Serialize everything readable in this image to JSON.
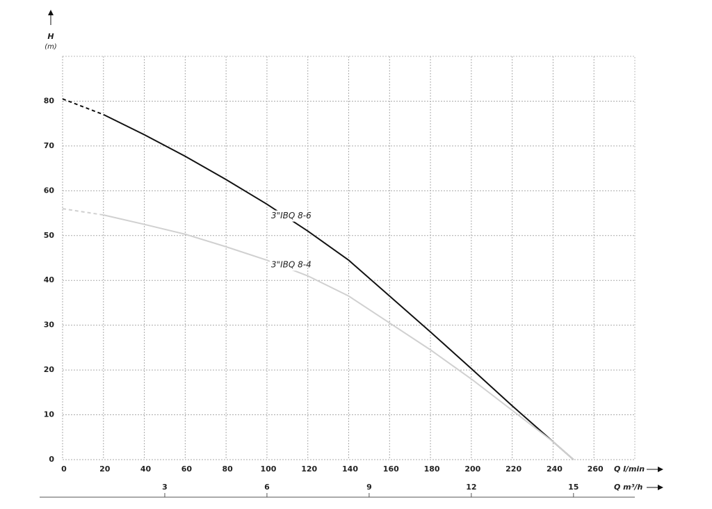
{
  "chart_data": {
    "type": "line",
    "y_label": "H",
    "y_unit": "(m)",
    "x_label": "Q l/min",
    "x2_label": "Q m³/h",
    "x": [
      0,
      20,
      40,
      60,
      80,
      100,
      120,
      140,
      160,
      180,
      200,
      220,
      240,
      250
    ],
    "series": [
      {
        "name": "3\"IBQ 8-6",
        "color": "#111111",
        "dashed_points": 2,
        "values": [
          80.5,
          77,
          72.5,
          67.7,
          62.5,
          57,
          51,
          44.5,
          36.5,
          28.5,
          20.3,
          12,
          4,
          0
        ]
      },
      {
        "name": "3\"IBQ 8-4",
        "color": "#d0d0d0",
        "dashed_points": 2,
        "values": [
          56,
          54.6,
          52.5,
          50.3,
          47.5,
          44.5,
          41,
          36.5,
          30.5,
          24.5,
          18,
          11,
          4,
          0
        ]
      }
    ],
    "xlim": [
      0,
      280
    ],
    "xticks": [
      0,
      20,
      40,
      60,
      80,
      100,
      120,
      140,
      160,
      180,
      200,
      220,
      240,
      260
    ],
    "x2lim": [
      0,
      16.8
    ],
    "x2ticks": [
      3,
      6,
      9,
      12,
      15
    ],
    "ylim": [
      0,
      90
    ],
    "yticks": [
      0,
      10,
      20,
      30,
      40,
      50,
      60,
      70,
      80
    ],
    "grid": true
  }
}
